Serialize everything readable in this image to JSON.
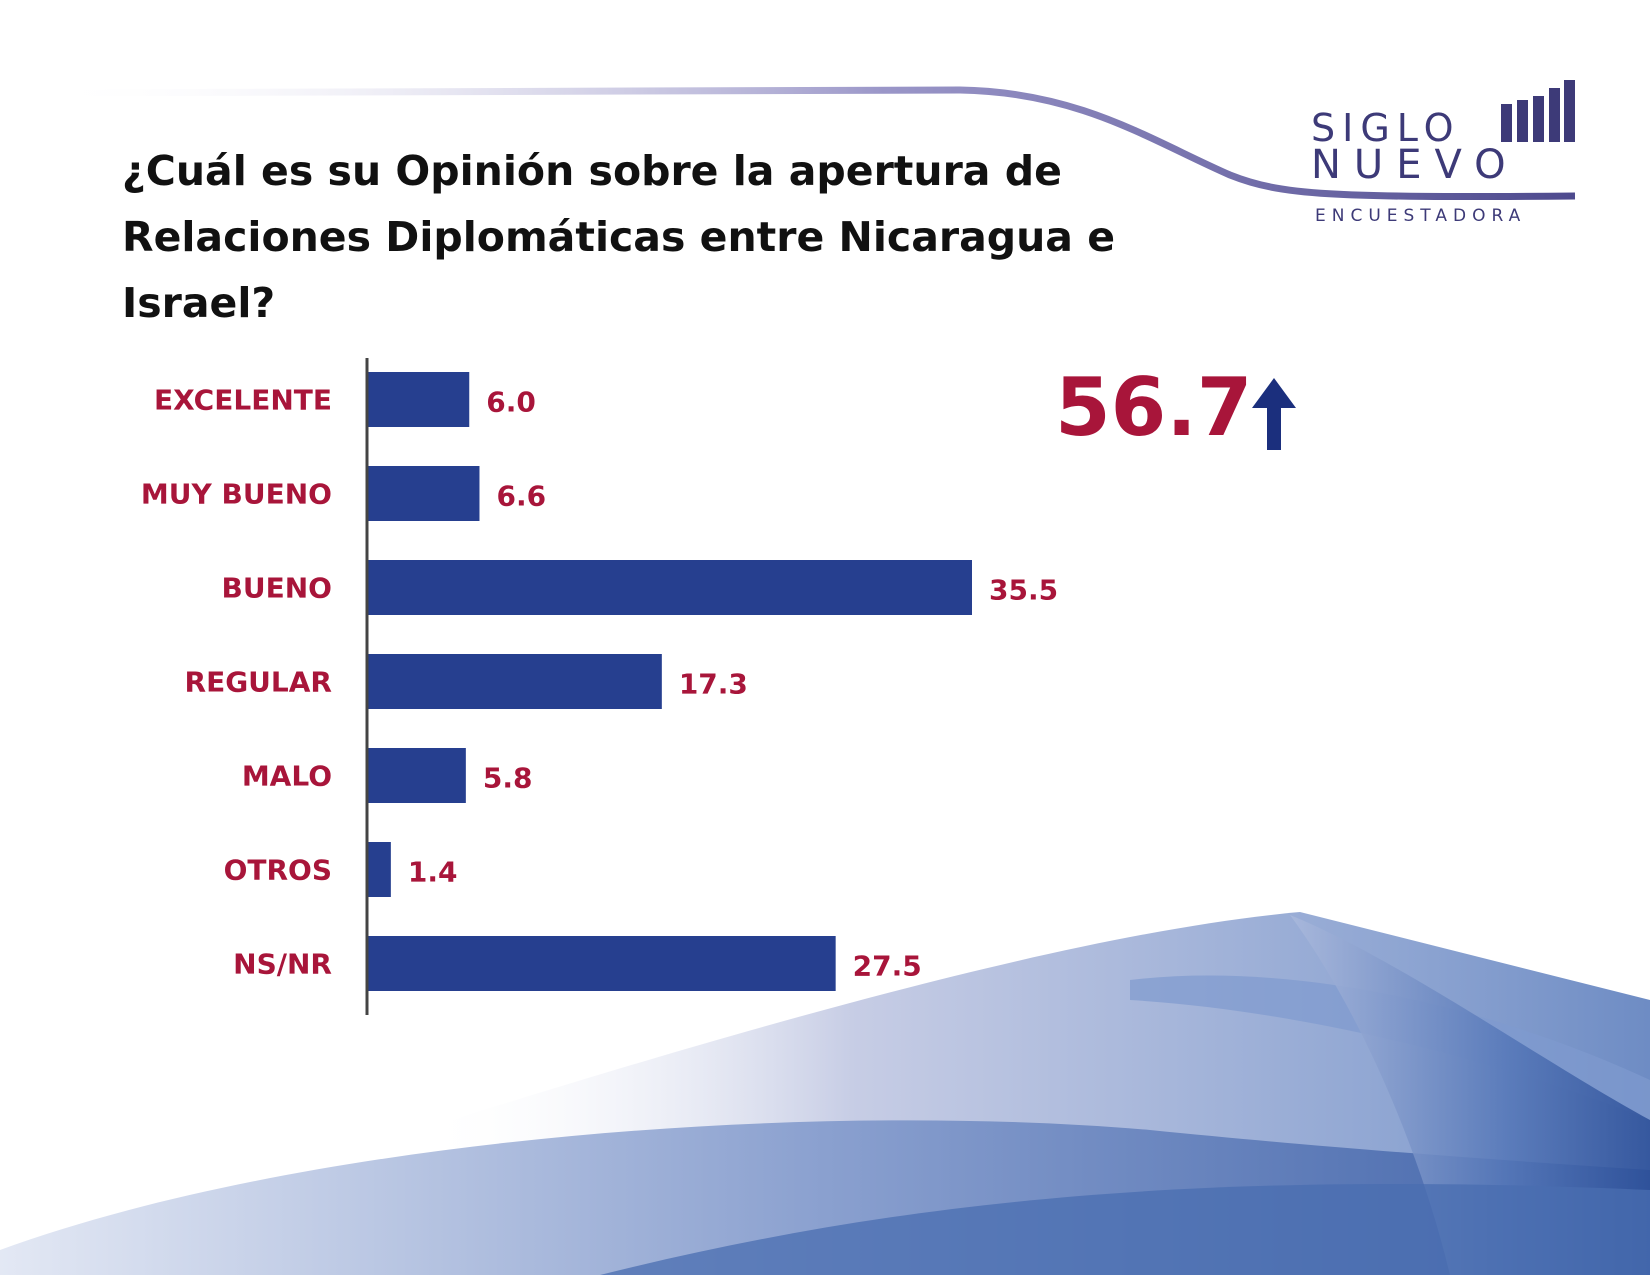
{
  "title": "¿Cuál es su Opinión sobre la apertura de Relaciones Diplomáticas entre Nicaragua e Israel?",
  "logo": {
    "line1": "SIGLO",
    "line2": "NUEVO",
    "line3": "ENCUESTADORA"
  },
  "highlight": {
    "value": "56.7",
    "icon": "arrow-up-icon"
  },
  "colors": {
    "bar": "#263f8f",
    "label": "#a8153a",
    "arrow": "#1b2f7d"
  },
  "chart_data": {
    "type": "bar",
    "orientation": "horizontal",
    "categories": [
      "EXCELENTE",
      "MUY BUENO",
      "BUENO",
      "REGULAR",
      "MALO",
      "OTROS",
      "NS/NR"
    ],
    "values": [
      6.0,
      6.6,
      35.5,
      17.3,
      5.8,
      1.4,
      27.5
    ],
    "value_labels": [
      "6.0",
      "6.6",
      "35.5",
      "17.3",
      "5.8",
      "1.4",
      "27.5"
    ],
    "xlim": [
      0,
      40
    ],
    "grid": false,
    "legend": "none"
  }
}
